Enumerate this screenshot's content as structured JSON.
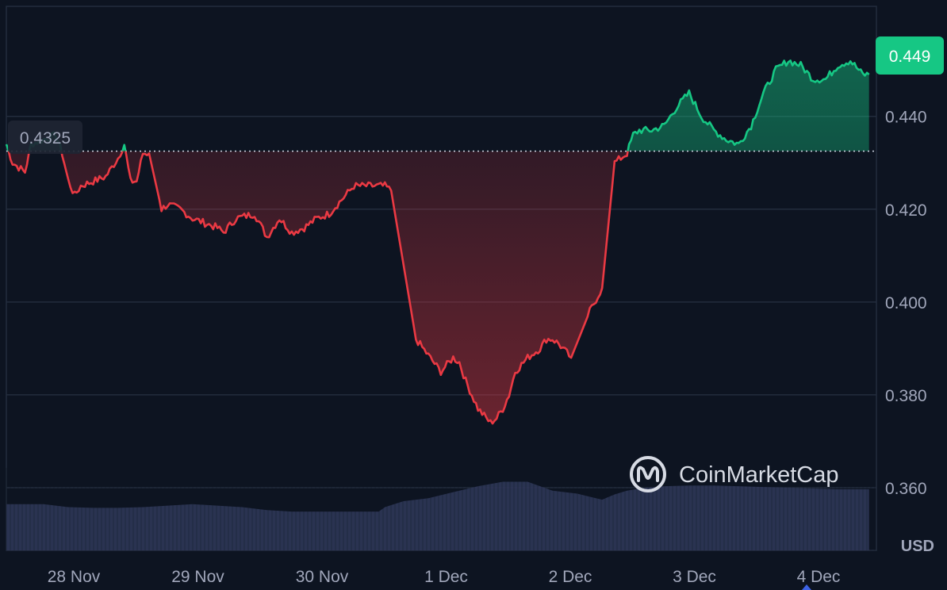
{
  "chart_data": {
    "type": "area",
    "title": "",
    "ylabel": "",
    "xlabel": "",
    "currency_label": "USD",
    "x_ticks": [
      "28 Nov",
      "29 Nov",
      "30 Nov",
      "1 Dec",
      "2 Dec",
      "3 Dec",
      "4 Dec"
    ],
    "y_ticks": [
      "0.360",
      "0.380",
      "0.400",
      "0.420",
      "0.440"
    ],
    "ylim": [
      0.3465,
      0.4637
    ],
    "xlim": [
      0,
      6.95
    ],
    "baseline": 0.4325,
    "baseline_label": "0.4325",
    "last_price_label": "0.449",
    "watermark": "CoinMarketCap",
    "grid": true,
    "colors": {
      "up": "#16c784",
      "down": "#ea3943",
      "volume": "#2d3656",
      "grid": "#232c3d",
      "baseline": "#cfd6e4"
    },
    "price_series": {
      "x": [
        0.0,
        0.05,
        0.15,
        0.2,
        0.3,
        0.4,
        0.45,
        0.5,
        0.55,
        0.6,
        0.7,
        0.8,
        0.9,
        0.95,
        1.0,
        1.05,
        1.1,
        1.15,
        1.25,
        1.3,
        1.4,
        1.5,
        1.6,
        1.7,
        1.75,
        1.85,
        2.0,
        2.1,
        2.2,
        2.3,
        2.4,
        2.5,
        2.6,
        2.7,
        2.8,
        2.9,
        3.0,
        3.05,
        3.1,
        3.3,
        3.5,
        3.6,
        3.65,
        3.7,
        3.8,
        3.9,
        3.95,
        4.0,
        4.05,
        4.1,
        4.2,
        4.3,
        4.35,
        4.4,
        4.45,
        4.55,
        4.7,
        4.8,
        4.9,
        4.95,
        5.0,
        5.05,
        5.1,
        5.2,
        5.3,
        5.4,
        5.5,
        5.6,
        5.7,
        5.8,
        5.9,
        6.0,
        6.1,
        6.2,
        6.3,
        6.4,
        6.5,
        6.6,
        6.7,
        6.8,
        6.9,
        6.95
      ],
      "y": [
        0.434,
        0.43,
        0.428,
        0.434,
        0.435,
        0.436,
        0.432,
        0.426,
        0.423,
        0.425,
        0.426,
        0.427,
        0.431,
        0.434,
        0.426,
        0.426,
        0.432,
        0.432,
        0.42,
        0.421,
        0.42,
        0.418,
        0.417,
        0.416,
        0.415,
        0.418,
        0.419,
        0.414,
        0.418,
        0.415,
        0.416,
        0.418,
        0.419,
        0.422,
        0.425,
        0.425,
        0.425,
        0.425,
        0.424,
        0.392,
        0.385,
        0.388,
        0.387,
        0.383,
        0.377,
        0.374,
        0.375,
        0.377,
        0.38,
        0.385,
        0.388,
        0.39,
        0.392,
        0.392,
        0.391,
        0.388,
        0.398,
        0.403,
        0.43,
        0.431,
        0.432,
        0.436,
        0.437,
        0.437,
        0.438,
        0.442,
        0.445,
        0.44,
        0.437,
        0.435,
        0.434,
        0.438,
        0.445,
        0.45,
        0.452,
        0.451,
        0.448,
        0.448,
        0.451,
        0.452,
        0.449,
        0.449
      ]
    },
    "volume_series": {
      "unit": "relative",
      "x": [
        0.0,
        0.3,
        0.5,
        0.7,
        0.9,
        1.1,
        1.3,
        1.5,
        1.7,
        1.9,
        2.1,
        2.3,
        2.5,
        2.7,
        2.9,
        3.0,
        3.05,
        3.2,
        3.4,
        3.6,
        3.8,
        4.0,
        4.2,
        4.4,
        4.6,
        4.7,
        4.8,
        4.9,
        5.0,
        5.1,
        5.3,
        5.5,
        5.7,
        5.9,
        6.1,
        6.3,
        6.5,
        6.7,
        6.95
      ],
      "y": [
        0.62,
        0.62,
        0.58,
        0.57,
        0.57,
        0.58,
        0.6,
        0.62,
        0.6,
        0.58,
        0.54,
        0.52,
        0.52,
        0.52,
        0.52,
        0.52,
        0.58,
        0.66,
        0.7,
        0.78,
        0.86,
        0.92,
        0.92,
        0.8,
        0.76,
        0.72,
        0.68,
        0.75,
        0.8,
        0.83,
        0.86,
        0.87,
        0.87,
        0.86,
        0.85,
        0.84,
        0.83,
        0.82,
        0.82
      ]
    }
  }
}
